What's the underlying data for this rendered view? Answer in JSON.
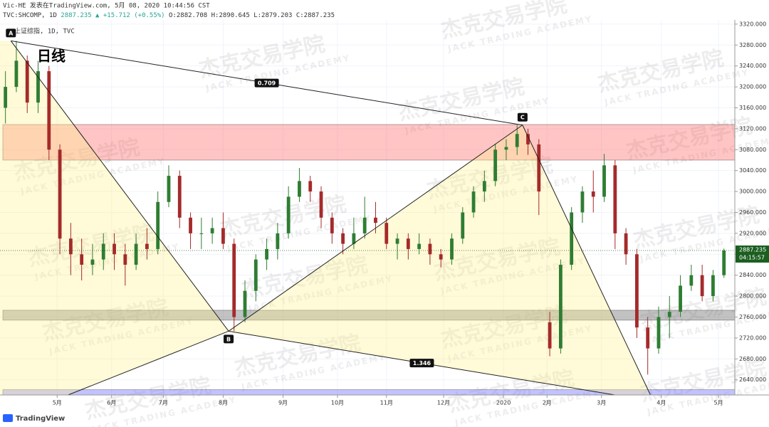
{
  "header": {
    "byline": "Vic-HE 发表在TradingView.com, 5月 08, 2020 10:44:56 CST",
    "symbol": "TVC:SHCOMP, 1D",
    "quote": "2887.235 ▲ +15.712 (+0.55%)",
    "ohlc": "O:2882.708 H:2890.645 L:2879.203 C:2887.235",
    "legend": "上证综指, 1D, TVC",
    "timeframe": "日线"
  },
  "watermark": {
    "cn": "杰克交易学院",
    "en": "JACK TRADING ACADEMY"
  },
  "footer": "TradingView",
  "chart_data": {
    "type": "candlestick",
    "up_color": "#2e7d32",
    "down_color": "#a52a2a",
    "grid": true,
    "xlim": [
      -2,
      268
    ],
    "ylim": [
      2611,
      3328
    ],
    "xticks": [
      {
        "value": 19,
        "label": "5月"
      },
      {
        "value": 39,
        "label": "6月"
      },
      {
        "value": 58,
        "label": "7月"
      },
      {
        "value": 80,
        "label": "8月"
      },
      {
        "value": 102,
        "label": "9月"
      },
      {
        "value": 122,
        "label": "10月"
      },
      {
        "value": 140,
        "label": "11月"
      },
      {
        "value": 161,
        "label": "12月"
      },
      {
        "value": 183,
        "label": "2020"
      },
      {
        "value": 199,
        "label": "2月"
      },
      {
        "value": 219,
        "label": "3月"
      },
      {
        "value": 241,
        "label": "4月"
      },
      {
        "value": 262,
        "label": "5月"
      }
    ],
    "yticks": [
      {
        "value": 2640,
        "label": "2640.000"
      },
      {
        "value": 2680,
        "label": "2680.000"
      },
      {
        "value": 2720,
        "label": "2720.000"
      },
      {
        "value": 2760,
        "label": "2760.000"
      },
      {
        "value": 2800,
        "label": "2800.000"
      },
      {
        "value": 2840,
        "label": "2840.000"
      },
      {
        "value": 2880,
        "label": "2880.000"
      },
      {
        "value": 2920,
        "label": "2920.000"
      },
      {
        "value": 2960,
        "label": "2960.000"
      },
      {
        "value": 3000,
        "label": "3000.000"
      },
      {
        "value": 3040,
        "label": "3040.000"
      },
      {
        "value": 3080,
        "label": "3080.000"
      },
      {
        "value": 3120,
        "label": "3120.000"
      },
      {
        "value": 3160,
        "label": "3160.000"
      },
      {
        "value": 3200,
        "label": "3200.000"
      },
      {
        "value": 3240,
        "label": "3240.000"
      },
      {
        "value": 3280,
        "label": "3280.000"
      },
      {
        "value": 3320,
        "label": "3320.000"
      }
    ],
    "x": [
      0,
      4,
      8,
      12,
      16,
      20,
      24,
      28,
      32,
      36,
      40,
      44,
      48,
      52,
      56,
      60,
      64,
      68,
      72,
      76,
      80,
      84,
      88,
      92,
      96,
      100,
      104,
      108,
      112,
      116,
      120,
      124,
      128,
      132,
      136,
      140,
      144,
      148,
      152,
      156,
      160,
      164,
      168,
      172,
      176,
      180,
      184,
      188,
      192,
      196,
      200,
      204,
      208,
      212,
      216,
      220,
      224,
      228,
      232,
      236,
      240,
      244,
      248,
      252,
      256,
      260,
      264
    ],
    "ohlc": [
      [
        3160,
        3230,
        3130,
        3200
      ],
      [
        3200,
        3288,
        3190,
        3250
      ],
      [
        3250,
        3260,
        3150,
        3170
      ],
      [
        3170,
        3250,
        3150,
        3230
      ],
      [
        3230,
        3240,
        3060,
        3080
      ],
      [
        3080,
        3090,
        2880,
        2910
      ],
      [
        2910,
        2940,
        2840,
        2880
      ],
      [
        2880,
        2910,
        2830,
        2860
      ],
      [
        2860,
        2900,
        2840,
        2870
      ],
      [
        2870,
        2920,
        2850,
        2900
      ],
      [
        2900,
        2920,
        2850,
        2880
      ],
      [
        2880,
        2900,
        2820,
        2860
      ],
      [
        2860,
        2920,
        2850,
        2900
      ],
      [
        2900,
        2930,
        2870,
        2890
      ],
      [
        2890,
        3000,
        2880,
        2980
      ],
      [
        2980,
        3050,
        2970,
        3030
      ],
      [
        3030,
        3040,
        2930,
        2950
      ],
      [
        2950,
        2960,
        2890,
        2920
      ],
      [
        2920,
        2950,
        2890,
        2920
      ],
      [
        2920,
        2950,
        2900,
        2930
      ],
      [
        2930,
        2960,
        2890,
        2900
      ],
      [
        2900,
        2910,
        2733,
        2760
      ],
      [
        2760,
        2830,
        2750,
        2810
      ],
      [
        2810,
        2880,
        2790,
        2870
      ],
      [
        2870,
        2910,
        2850,
        2890
      ],
      [
        2890,
        2940,
        2870,
        2920
      ],
      [
        2920,
        3010,
        2910,
        2990
      ],
      [
        2990,
        3045,
        2980,
        3020
      ],
      [
        3020,
        3030,
        2980,
        3000
      ],
      [
        3000,
        3010,
        2930,
        2950
      ],
      [
        2950,
        2960,
        2900,
        2920
      ],
      [
        2920,
        2930,
        2880,
        2900
      ],
      [
        2900,
        2950,
        2890,
        2920
      ],
      [
        2920,
        2990,
        2910,
        2950
      ],
      [
        2950,
        2980,
        2920,
        2940
      ],
      [
        2940,
        2950,
        2890,
        2900
      ],
      [
        2900,
        2920,
        2870,
        2910
      ],
      [
        2910,
        2920,
        2870,
        2890
      ],
      [
        2890,
        2920,
        2880,
        2900
      ],
      [
        2900,
        2910,
        2860,
        2880
      ],
      [
        2880,
        2890,
        2855,
        2870
      ],
      [
        2870,
        2920,
        2860,
        2910
      ],
      [
        2910,
        2970,
        2900,
        2960
      ],
      [
        2960,
        3010,
        2950,
        3000
      ],
      [
        3000,
        3040,
        2980,
        3020
      ],
      [
        3020,
        3090,
        3010,
        3080
      ],
      [
        3080,
        3100,
        3060,
        3085
      ],
      [
        3085,
        3127,
        3070,
        3110
      ],
      [
        3110,
        3120,
        3070,
        3090
      ],
      [
        3090,
        3100,
        2955,
        3000
      ],
      [
        2750,
        2770,
        2685,
        2700
      ],
      [
        2700,
        2870,
        2690,
        2860
      ],
      [
        2860,
        2970,
        2850,
        2960
      ],
      [
        2960,
        3010,
        2940,
        3000
      ],
      [
        3000,
        3040,
        2960,
        2990
      ],
      [
        2990,
        3072,
        2980,
        3050
      ],
      [
        3050,
        3060,
        2890,
        2920
      ],
      [
        2920,
        2930,
        2860,
        2880
      ],
      [
        2880,
        2890,
        2720,
        2740
      ],
      [
        2740,
        2760,
        2650,
        2700
      ],
      [
        2700,
        2780,
        2690,
        2760
      ],
      [
        2760,
        2800,
        2720,
        2770
      ],
      [
        2770,
        2840,
        2760,
        2820
      ],
      [
        2820,
        2860,
        2810,
        2840
      ],
      [
        2840,
        2860,
        2790,
        2800
      ],
      [
        2800,
        2850,
        2790,
        2840
      ],
      [
        2840,
        2891,
        2835,
        2887.235
      ]
    ],
    "last": {
      "value": 2887.235,
      "countdown": "04:15:57",
      "color": "#1b5e20"
    },
    "zones": [
      {
        "ylim": [
          3060,
          3128
        ],
        "color": "rgba(255,90,90,0.35)"
      },
      {
        "ylim": [
          2754,
          2773
        ],
        "color": "rgba(120,120,120,0.45)"
      },
      {
        "ylim": [
          2611,
          2621
        ],
        "color": "rgba(120,120,255,0.45)"
      }
    ],
    "fills": [
      {
        "x": [
          -2,
          2,
          82,
          23,
          -2
        ],
        "y": [
          3288,
          3288,
          2733,
          2611,
          2611
        ],
        "color": "rgba(255,240,140,0.35)"
      },
      {
        "x": [
          82,
          190,
          237,
          224
        ],
        "y": [
          2733,
          3127,
          2611,
          2611
        ],
        "color": "rgba(255,240,140,0.35)"
      }
    ],
    "points": [
      {
        "label": "A",
        "x": 2,
        "y": 3288
      },
      {
        "label": "B",
        "x": 82,
        "y": 2733
      },
      {
        "label": "C",
        "x": 190,
        "y": 3127
      }
    ],
    "lines": [
      {
        "x": [
          2,
          190
        ],
        "y": [
          3288,
          3127
        ],
        "ratio": 0.709
      },
      {
        "x": [
          2,
          82
        ],
        "y": [
          3288,
          2733
        ]
      },
      {
        "x": [
          82,
          190
        ],
        "y": [
          2733,
          3127
        ]
      },
      {
        "x": [
          23,
          82
        ],
        "y": [
          2611,
          2733
        ]
      },
      {
        "x": [
          82,
          224
        ],
        "y": [
          2733,
          2611
        ],
        "ratio": 1.346
      },
      {
        "x": [
          190,
          237
        ],
        "y": [
          3127,
          2611
        ]
      }
    ]
  }
}
